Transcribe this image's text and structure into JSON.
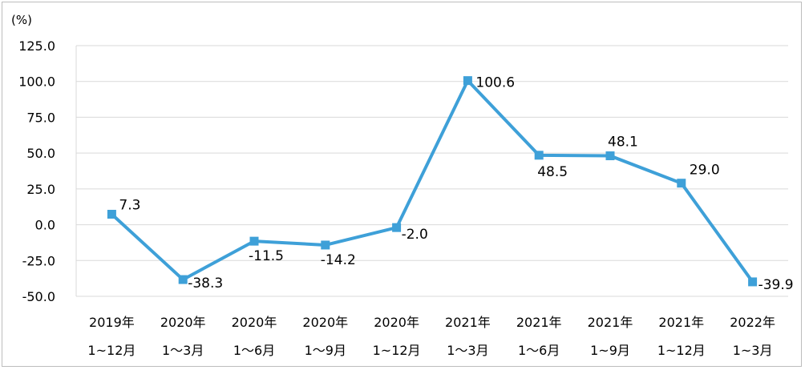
{
  "chart_data": {
    "type": "line",
    "unit_label": "(%)",
    "ylim": [
      -50.0,
      125.0
    ],
    "yticks": [
      "125.0",
      "100.0",
      "75.0",
      "50.0",
      "25.0",
      "0.0",
      "-25.0",
      "-50.0"
    ],
    "ytick_values": [
      125,
      100,
      75,
      50,
      25,
      0,
      -25,
      -50
    ],
    "categories": [
      [
        "2019年",
        "1~12月"
      ],
      [
        "2020年",
        "1～3月"
      ],
      [
        "2020年",
        "1～6月"
      ],
      [
        "2020年",
        "1～9月"
      ],
      [
        "2020年",
        "1~12月"
      ],
      [
        "2021年",
        "1～3月"
      ],
      [
        "2021年",
        "1～6月"
      ],
      [
        "2021年",
        "1~9月"
      ],
      [
        "2021年",
        "1~12月"
      ],
      [
        "2022年",
        "1~3月"
      ]
    ],
    "values": [
      7.3,
      -38.3,
      -11.5,
      -14.2,
      -2.0,
      100.6,
      48.5,
      48.1,
      29.0,
      -39.9
    ],
    "value_labels": [
      "7.3",
      "-38.3",
      "-11.5",
      "-14.2",
      "-2.0",
      "100.6",
      "48.5",
      "48.1",
      "29.0",
      "-39.9"
    ],
    "grid": true,
    "legend": "none",
    "line_color": "#3ea0d8",
    "grid_color": "#d9d9d9"
  }
}
